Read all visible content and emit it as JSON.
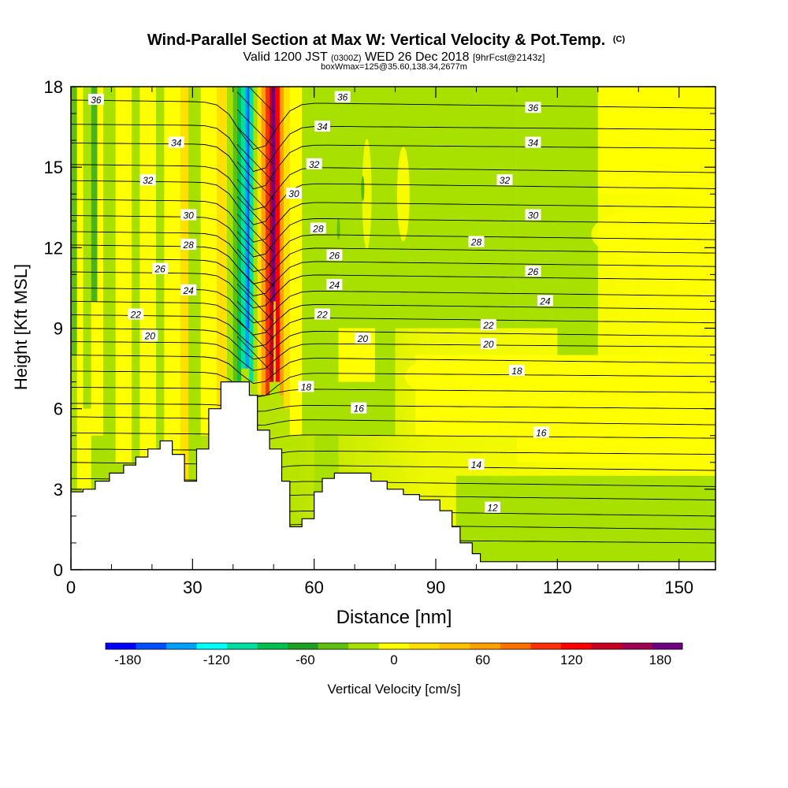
{
  "chart_data": {
    "type": "heatmap",
    "title": "Wind-Parallel Section at Max W: Vertical Velocity & Pot.Temp.",
    "title_mark": "(C)",
    "subtitle_main": "Valid 1200 JST",
    "subtitle_z": "(0300Z)",
    "subtitle_date": "WED 26 Dec 2018",
    "subtitle_fcst": "[9hrFcst@2143z]",
    "subtitle_box": "boxWmax=125@35.60,138.34,2677m",
    "xlabel": "Distance [nm]",
    "ylabel": "Height [Kft MSL]",
    "xlim": [
      0,
      159
    ],
    "ylim": [
      0,
      18
    ],
    "x_ticks": [
      "0",
      "30",
      "60",
      "90",
      "120",
      "150"
    ],
    "x_tick_values": [
      0,
      30,
      60,
      90,
      120,
      150
    ],
    "y_ticks": [
      "0",
      "3",
      "6",
      "9",
      "12",
      "15",
      "18"
    ],
    "y_tick_values": [
      0,
      3,
      6,
      9,
      12,
      15,
      18
    ],
    "colorbar": {
      "label": "Vertical Velocity [cm/s]",
      "range": [
        -195,
        195
      ],
      "tick_labels": [
        "-180",
        "-120",
        "-60",
        "0",
        "60",
        "120",
        "180"
      ],
      "tick_values": [
        -180,
        -120,
        -60,
        0,
        60,
        120,
        180
      ],
      "colors": [
        "#0000ff",
        "#0050ff",
        "#00a0ff",
        "#00ffff",
        "#00e0a0",
        "#00c050",
        "#20a020",
        "#60c010",
        "#a8e000",
        "#ffff00",
        "#ffe000",
        "#ffc000",
        "#ffa000",
        "#ff7000",
        "#ff3000",
        "#ff0000",
        "#c80020",
        "#a00050",
        "#700080"
      ]
    },
    "theta_contour_labels": [
      {
        "label": "36",
        "x": 6.2,
        "y": 17.5
      },
      {
        "label": "34",
        "x": 26,
        "y": 15.9
      },
      {
        "label": "32",
        "x": 19,
        "y": 14.5
      },
      {
        "label": "30",
        "x": 29,
        "y": 13.2
      },
      {
        "label": "28",
        "x": 29,
        "y": 12.1
      },
      {
        "label": "26",
        "x": 22,
        "y": 11.2
      },
      {
        "label": "24",
        "x": 29,
        "y": 10.4
      },
      {
        "label": "22",
        "x": 16,
        "y": 9.5
      },
      {
        "label": "20",
        "x": 19.5,
        "y": 8.7
      },
      {
        "label": "36",
        "x": 67,
        "y": 17.6
      },
      {
        "label": "34",
        "x": 62,
        "y": 16.5
      },
      {
        "label": "32",
        "x": 60,
        "y": 15.1
      },
      {
        "label": "30",
        "x": 55,
        "y": 14.0
      },
      {
        "label": "28",
        "x": 61,
        "y": 12.7
      },
      {
        "label": "26",
        "x": 65,
        "y": 11.7
      },
      {
        "label": "24",
        "x": 65,
        "y": 10.6
      },
      {
        "label": "22",
        "x": 62,
        "y": 9.5
      },
      {
        "label": "20",
        "x": 72,
        "y": 8.6
      },
      {
        "label": "18",
        "x": 58,
        "y": 6.8
      },
      {
        "label": "16",
        "x": 71,
        "y": 6.0
      },
      {
        "label": "36",
        "x": 114,
        "y": 17.2
      },
      {
        "label": "34",
        "x": 114,
        "y": 15.9
      },
      {
        "label": "32",
        "x": 107,
        "y": 14.5
      },
      {
        "label": "30",
        "x": 114,
        "y": 13.2
      },
      {
        "label": "28",
        "x": 100,
        "y": 12.2
      },
      {
        "label": "26",
        "x": 114,
        "y": 11.1
      },
      {
        "label": "24",
        "x": 117,
        "y": 10.0
      },
      {
        "label": "22",
        "x": 103,
        "y": 9.1
      },
      {
        "label": "20",
        "x": 103,
        "y": 8.4
      },
      {
        "label": "18",
        "x": 110,
        "y": 7.4
      },
      {
        "label": "16",
        "x": 116,
        "y": 5.1
      },
      {
        "label": "14",
        "x": 100,
        "y": 3.9
      },
      {
        "label": "12",
        "x": 104,
        "y": 2.3
      }
    ],
    "terrain_profile": [
      [
        0,
        2.9
      ],
      [
        3,
        2.9
      ],
      [
        3,
        3.0
      ],
      [
        6,
        3.0
      ],
      [
        6,
        3.3
      ],
      [
        9.5,
        3.3
      ],
      [
        9.5,
        3.6
      ],
      [
        13,
        3.6
      ],
      [
        13,
        3.9
      ],
      [
        16,
        3.9
      ],
      [
        16,
        4.2
      ],
      [
        19,
        4.2
      ],
      [
        19,
        4.5
      ],
      [
        22,
        4.5
      ],
      [
        22,
        4.8
      ],
      [
        25,
        4.8
      ],
      [
        25,
        4.3
      ],
      [
        28,
        4.3
      ],
      [
        28,
        3.3
      ],
      [
        31,
        3.3
      ],
      [
        31,
        4.5
      ],
      [
        34,
        4.5
      ],
      [
        34,
        6.0
      ],
      [
        37,
        6.0
      ],
      [
        37,
        7.0
      ],
      [
        41,
        7.0
      ],
      [
        41,
        7.0
      ],
      [
        44,
        7.0
      ],
      [
        44,
        6.5
      ],
      [
        46,
        6.5
      ],
      [
        46,
        5.2
      ],
      [
        49,
        5.2
      ],
      [
        49,
        4.5
      ],
      [
        52,
        4.5
      ],
      [
        52,
        3.3
      ],
      [
        54,
        3.3
      ],
      [
        54,
        1.6
      ],
      [
        57,
        1.6
      ],
      [
        57,
        1.9
      ],
      [
        60,
        1.9
      ],
      [
        60,
        2.9
      ],
      [
        62,
        2.9
      ],
      [
        62,
        3.4
      ],
      [
        65,
        3.4
      ],
      [
        65,
        3.6
      ],
      [
        74,
        3.6
      ],
      [
        74,
        3.3
      ],
      [
        78,
        3.3
      ],
      [
        78,
        3.0
      ],
      [
        82,
        3.0
      ],
      [
        82,
        2.8
      ],
      [
        86,
        2.8
      ],
      [
        86,
        2.6
      ],
      [
        91,
        2.6
      ],
      [
        91,
        2.2
      ],
      [
        94,
        2.2
      ],
      [
        94,
        1.6
      ],
      [
        96,
        1.6
      ],
      [
        96,
        1.0
      ],
      [
        99,
        1.0
      ],
      [
        99,
        0.6
      ],
      [
        101,
        0.6
      ],
      [
        101,
        0.3
      ],
      [
        159,
        0.3
      ]
    ]
  }
}
